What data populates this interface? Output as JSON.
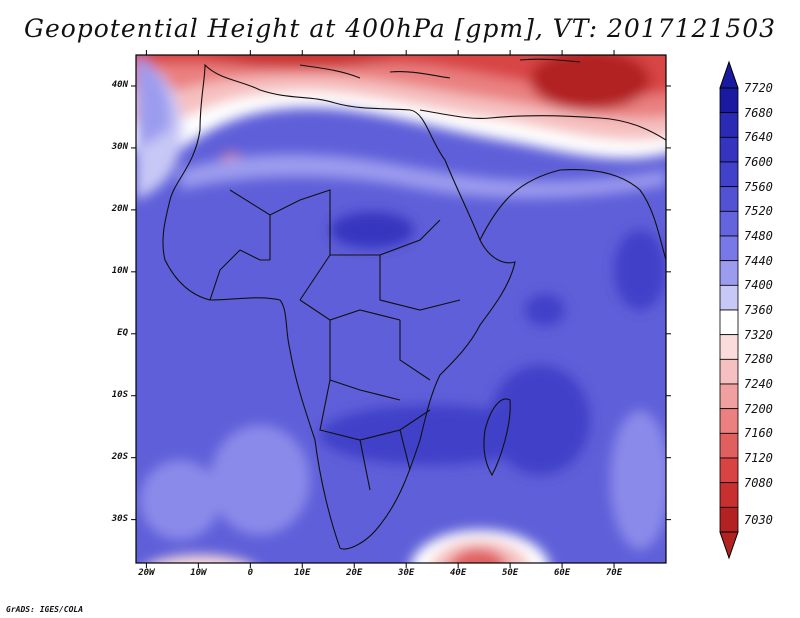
{
  "title": "Geopotential Height at 400hPa [gpm], VT: 2017121503",
  "footer": "GrADS: IGES/COLA",
  "map": {
    "lat_labels": [
      "40N",
      "30N",
      "20N",
      "10N",
      "EQ",
      "10S",
      "20S",
      "30S"
    ],
    "lat_values": [
      40,
      30,
      20,
      10,
      0,
      -10,
      -20,
      -30
    ],
    "lon_labels": [
      "20W",
      "10W",
      "0",
      "10E",
      "20E",
      "30E",
      "40E",
      "50E",
      "60E",
      "70E"
    ],
    "lon_values": [
      -20,
      -10,
      0,
      10,
      20,
      30,
      40,
      50,
      60,
      70
    ],
    "lon_range": [
      -22,
      80
    ],
    "lat_range": [
      -37,
      45
    ],
    "field_level_range": [
      7030,
      7720
    ]
  },
  "colorbar": {
    "levels": [
      "7720",
      "7680",
      "7640",
      "7600",
      "7560",
      "7520",
      "7480",
      "7440",
      "7400",
      "7360",
      "7320",
      "7280",
      "7240",
      "7200",
      "7160",
      "7120",
      "7080",
      "7030"
    ],
    "colors": [
      "#1a1aa0",
      "#2a2ab4",
      "#3434bf",
      "#4141c9",
      "#5252d2",
      "#6464dc",
      "#7878e6",
      "#9c9cef",
      "#c8c8f6",
      "#ffffff",
      "#fbdcdc",
      "#f6c0c0",
      "#f0a0a0",
      "#ea8080",
      "#e06060",
      "#d84444",
      "#c83030",
      "#b22222"
    ]
  }
}
